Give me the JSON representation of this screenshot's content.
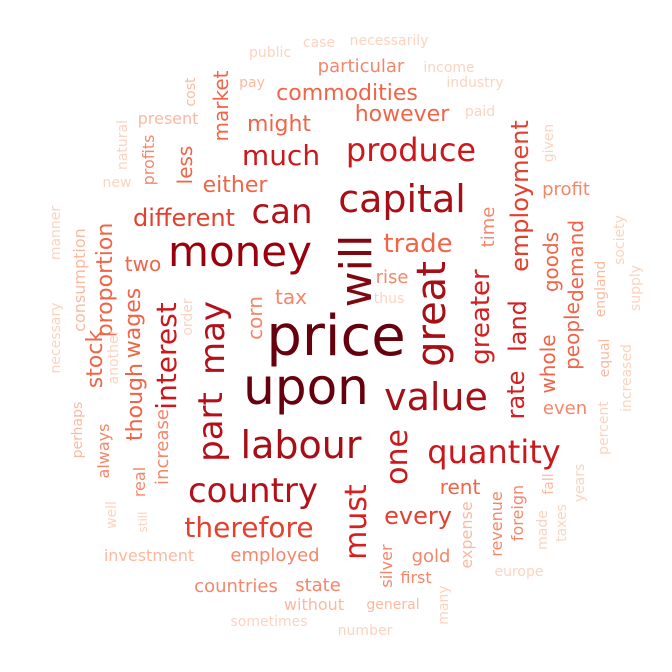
{
  "words": [
    {
      "text": "price",
      "color": "#67000d"
    },
    {
      "text": "upon",
      "color": "#67000d"
    },
    {
      "text": "will",
      "color": "#7f0710"
    },
    {
      "text": "money",
      "color": "#99000d"
    },
    {
      "text": "capital",
      "color": "#a50f15"
    },
    {
      "text": "great",
      "color": "#a50f15"
    },
    {
      "text": "labour",
      "color": "#a50f15"
    },
    {
      "text": "value",
      "color": "#a50f15"
    },
    {
      "text": "part",
      "color": "#b3111a"
    },
    {
      "text": "may",
      "color": "#b3111a"
    },
    {
      "text": "country",
      "color": "#b3111a"
    },
    {
      "text": "produce",
      "color": "#cb181d"
    },
    {
      "text": "can",
      "color": "#b3111a"
    },
    {
      "text": "quantity",
      "color": "#cb181d"
    },
    {
      "text": "much",
      "color": "#cb181d"
    },
    {
      "text": "interest",
      "color": "#cb181d"
    },
    {
      "text": "one",
      "color": "#cb181d"
    },
    {
      "text": "must",
      "color": "#d42020"
    },
    {
      "text": "therefore",
      "color": "#e2412f"
    },
    {
      "text": "trade",
      "color": "#ef6548"
    },
    {
      "text": "greater",
      "color": "#d42020"
    },
    {
      "text": "rate",
      "color": "#d42020"
    },
    {
      "text": "land",
      "color": "#d42020"
    },
    {
      "text": "employment",
      "color": "#e2412f"
    },
    {
      "text": "different",
      "color": "#e2412f"
    },
    {
      "text": "every",
      "color": "#e2412f"
    },
    {
      "text": "commodities",
      "color": "#ef6548"
    },
    {
      "text": "might",
      "color": "#ef6548"
    },
    {
      "text": "however",
      "color": "#ef6548"
    },
    {
      "text": "either",
      "color": "#ef6548"
    },
    {
      "text": "wages",
      "color": "#ef6548"
    },
    {
      "text": "proportion",
      "color": "#ef6548"
    },
    {
      "text": "though",
      "color": "#ef6548"
    },
    {
      "text": "stock",
      "color": "#ef6548"
    },
    {
      "text": "two",
      "color": "#ef6548"
    },
    {
      "text": "tax",
      "color": "#f4866a"
    },
    {
      "text": "corn",
      "color": "#f4866a"
    },
    {
      "text": "rent",
      "color": "#ef6548"
    },
    {
      "text": "market",
      "color": "#ef6548"
    },
    {
      "text": "less",
      "color": "#ef6548"
    },
    {
      "text": "whole",
      "color": "#ef6548"
    },
    {
      "text": "goods",
      "color": "#ef6548"
    },
    {
      "text": "people",
      "color": "#ef6548"
    },
    {
      "text": "demand",
      "color": "#ef6548"
    },
    {
      "text": "even",
      "color": "#f4866a"
    },
    {
      "text": "increase",
      "color": "#f4866a"
    },
    {
      "text": "particular",
      "color": "#f4866a"
    },
    {
      "text": "time",
      "color": "#f4866a"
    },
    {
      "text": "rise",
      "color": "#f4866a"
    },
    {
      "text": "profit",
      "color": "#f4866a"
    },
    {
      "text": "employed",
      "color": "#f4866a"
    },
    {
      "text": "countries",
      "color": "#f4866a"
    },
    {
      "text": "state",
      "color": "#f4866a"
    },
    {
      "text": "gold",
      "color": "#f4866a"
    },
    {
      "text": "first",
      "color": "#f4866a"
    },
    {
      "text": "silver",
      "color": "#f4866a"
    },
    {
      "text": "revenue",
      "color": "#f4866a"
    },
    {
      "text": "foreign",
      "color": "#f4866a"
    },
    {
      "text": "expense",
      "color": "#fbb9a0"
    },
    {
      "text": "always",
      "color": "#f4866a"
    },
    {
      "text": "real",
      "color": "#f4866a"
    },
    {
      "text": "profits",
      "color": "#f4866a"
    },
    {
      "text": "consumption",
      "color": "#fbb9a0"
    },
    {
      "text": "without",
      "color": "#fbb9a0"
    },
    {
      "text": "general",
      "color": "#fbb9a0"
    },
    {
      "text": "investment",
      "color": "#fbb9a0"
    },
    {
      "text": "present",
      "color": "#fbb9a0"
    },
    {
      "text": "cost",
      "color": "#fbb9a0"
    },
    {
      "text": "pay",
      "color": "#fbb9a0"
    },
    {
      "text": "public",
      "color": "#fcd3bf"
    },
    {
      "text": "case",
      "color": "#fcd3bf"
    },
    {
      "text": "necessarily",
      "color": "#fcd3bf"
    },
    {
      "text": "income",
      "color": "#fcd3bf"
    },
    {
      "text": "industry",
      "color": "#fcd3bf"
    },
    {
      "text": "paid",
      "color": "#fcd3bf"
    },
    {
      "text": "natural",
      "color": "#fcd3bf"
    },
    {
      "text": "new",
      "color": "#fcd3bf"
    },
    {
      "text": "given",
      "color": "#fcd3bf"
    },
    {
      "text": "manner",
      "color": "#fcd3bf"
    },
    {
      "text": "necessary",
      "color": "#fcd3bf"
    },
    {
      "text": "perhaps",
      "color": "#fbb9a0"
    },
    {
      "text": "another",
      "color": "#fcd3bf"
    },
    {
      "text": "order",
      "color": "#fcd3bf"
    },
    {
      "text": "thus",
      "color": "#fcd3bf"
    },
    {
      "text": "society",
      "color": "#fcd3bf"
    },
    {
      "text": "supply",
      "color": "#fcd3bf"
    },
    {
      "text": "england",
      "color": "#fbb9a0"
    },
    {
      "text": "equal",
      "color": "#fbb9a0"
    },
    {
      "text": "percent",
      "color": "#fcd3bf"
    },
    {
      "text": "increased",
      "color": "#fcd3bf"
    },
    {
      "text": "fall",
      "color": "#fbb9a0"
    },
    {
      "text": "years",
      "color": "#fcd3bf"
    },
    {
      "text": "made",
      "color": "#fcd3bf"
    },
    {
      "text": "taxes",
      "color": "#fcd3bf"
    },
    {
      "text": "europe",
      "color": "#fcd3bf"
    },
    {
      "text": "many",
      "color": "#fcd3bf"
    },
    {
      "text": "well",
      "color": "#fcd3bf"
    },
    {
      "text": "still",
      "color": "#fcd3bf"
    },
    {
      "text": "sometimes",
      "color": "#fcd3bf"
    },
    {
      "text": "number",
      "color": "#fcd3bf"
    }
  ]
}
